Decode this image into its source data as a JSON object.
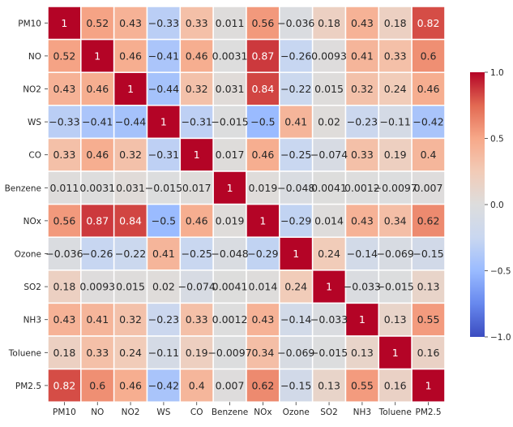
{
  "chart_data": {
    "type": "heatmap",
    "title": "",
    "xlabel": "",
    "ylabel": "",
    "rows": [
      "PM10",
      "NO",
      "NO2",
      "WS",
      "CO",
      "Benzene",
      "NOx",
      "Ozone",
      "SO2",
      "NH3",
      "Toluene",
      "PM2.5"
    ],
    "columns": [
      "PM10",
      "NO",
      "NO2",
      "WS",
      "CO",
      "Benzene",
      "NOx",
      "Ozone",
      "SO2",
      "NH3",
      "Toluene",
      "PM2.5"
    ],
    "values": [
      [
        1,
        0.52,
        0.43,
        -0.33,
        0.33,
        0.011,
        0.56,
        -0.036,
        0.18,
        0.43,
        0.18,
        0.82
      ],
      [
        0.52,
        1,
        0.46,
        -0.41,
        0.46,
        0.0031,
        0.87,
        -0.26,
        0.0093,
        0.41,
        0.33,
        0.6
      ],
      [
        0.43,
        0.46,
        1,
        -0.44,
        0.32,
        0.031,
        0.84,
        -0.22,
        0.015,
        0.32,
        0.24,
        0.46
      ],
      [
        -0.33,
        -0.41,
        -0.44,
        1,
        -0.31,
        -0.015,
        -0.5,
        0.41,
        0.02,
        -0.23,
        -0.11,
        -0.42
      ],
      [
        0.33,
        0.46,
        0.32,
        -0.31,
        1,
        0.017,
        0.46,
        -0.25,
        -0.074,
        0.33,
        0.19,
        0.4
      ],
      [
        0.011,
        0.0031,
        0.031,
        -0.015,
        0.017,
        1,
        0.019,
        -0.048,
        0.0041,
        0.0012,
        -0.0097,
        0.007
      ],
      [
        0.56,
        0.87,
        0.84,
        -0.5,
        0.46,
        0.019,
        1,
        -0.29,
        0.014,
        0.43,
        0.34,
        0.62
      ],
      [
        -0.036,
        -0.26,
        -0.22,
        0.41,
        -0.25,
        -0.048,
        -0.29,
        1,
        0.24,
        -0.14,
        -0.069,
        -0.15
      ],
      [
        0.18,
        0.0093,
        0.015,
        0.02,
        -0.074,
        0.0041,
        0.014,
        0.24,
        1,
        -0.033,
        -0.015,
        0.13
      ],
      [
        0.43,
        0.41,
        0.32,
        -0.23,
        0.33,
        0.0012,
        0.43,
        -0.14,
        -0.033,
        1,
        0.13,
        0.55
      ],
      [
        0.18,
        0.33,
        0.24,
        -0.11,
        0.19,
        -0.0097,
        0.34,
        -0.069,
        -0.015,
        0.13,
        1,
        0.16
      ],
      [
        0.82,
        0.6,
        0.46,
        -0.42,
        0.4,
        0.007,
        0.62,
        -0.15,
        0.13,
        0.55,
        0.16,
        1
      ]
    ],
    "color_scale": {
      "name": "coolwarm",
      "min": -1,
      "max": 1,
      "stops": [
        "#3b4cc0",
        "#6788ee",
        "#9abbff",
        "#c9d7f0",
        "#dddddd",
        "#f2cbb7",
        "#f7a889",
        "#e26952",
        "#b40426"
      ]
    },
    "colorbar_ticks": [
      {
        "value": 1,
        "label": "1.0"
      },
      {
        "value": 0.5,
        "label": "0.5"
      },
      {
        "value": 0,
        "label": "0.0"
      },
      {
        "value": -0.5,
        "label": "−0.5"
      },
      {
        "value": -1,
        "label": "−1.0"
      }
    ],
    "annotate": true,
    "grid_lines": "white",
    "legend": "colorbar-right"
  }
}
